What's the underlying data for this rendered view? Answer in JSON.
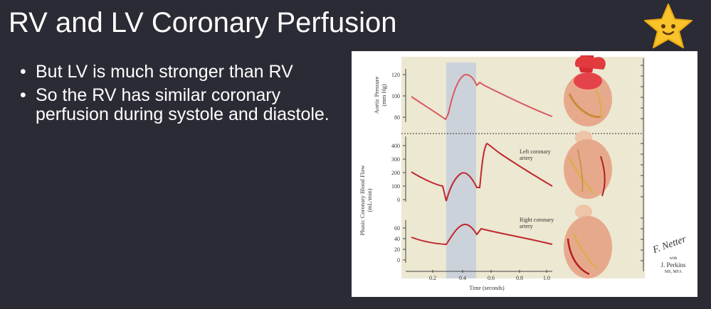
{
  "slide": {
    "title": "RV and LV Coronary Perfusion",
    "bullets": [
      "But LV is much stronger than RV",
      "So the RV has similar coronary perfusion during systole and diastole."
    ]
  },
  "icons": {
    "star": "star-icon"
  },
  "figure": {
    "aortic_label_1": "Aortic Pressure",
    "aortic_label_2": "(mm Hg)",
    "flow_label_1": "Phasic Coronary Blood Flow",
    "flow_label_2": "(mL/min)",
    "aortic_ticks": [
      "120",
      "100",
      "80"
    ],
    "left_ticks": [
      "400",
      "300",
      "200",
      "100",
      "0"
    ],
    "right_ticks": [
      "60",
      "40",
      "20",
      "0"
    ],
    "x_ticks": [
      "0.2",
      "0.4",
      "0.6",
      "0.8",
      "1.0"
    ],
    "x_label": "Time (seconds)",
    "left_curve_label_1": "Left coronary",
    "left_curve_label_2": "artery",
    "right_curve_label_1": "Right coronary",
    "right_curve_label_2": "artery",
    "signature_1": "F. Netter",
    "signature_2": "J. Perkins",
    "signature_3": "MS, MFA",
    "signature_with": "with"
  },
  "colors": {
    "background": "#2b2b35",
    "figure_panel": "#ece8d2",
    "systole_band": "#ccd2da",
    "curve": "#c0272d",
    "aortic_curve": "#d9595e",
    "star": "#f9c32b"
  }
}
